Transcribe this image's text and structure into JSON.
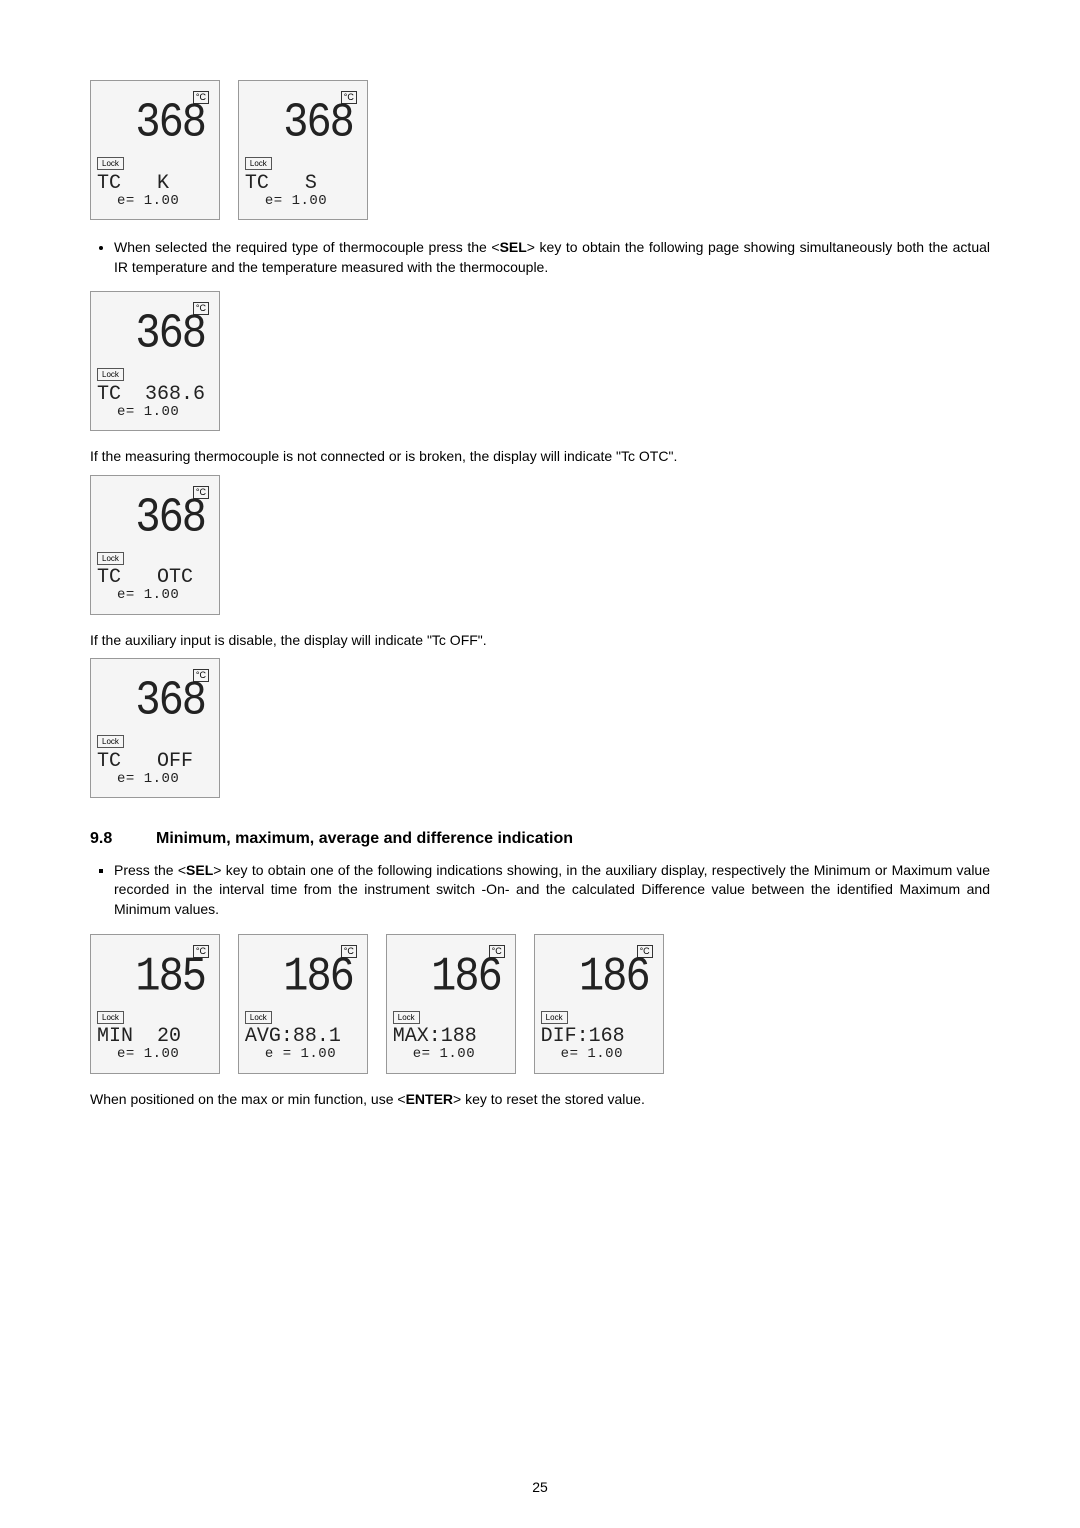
{
  "page_number": "25",
  "section": {
    "number": "9.8",
    "title": "Minimum, maximum, average and difference indication"
  },
  "row_top": {
    "panels": [
      {
        "unit": "°C",
        "main": "368",
        "lock": "Lock",
        "aux": "TC   K",
        "e": "e= 1.00"
      },
      {
        "unit": "°C",
        "main": "368",
        "lock": "Lock",
        "aux": "TC   S",
        "e": "e= 1.00"
      }
    ]
  },
  "bullet_sel": "When selected the required type of thermocouple press the <",
  "bullet_sel_key": "SEL",
  "bullet_sel_2": "> key to obtain the following page showing simultaneously both the actual IR temperature and the temperature measured with the thermocouple.",
  "panel_tc_value": {
    "unit": "°C",
    "main": "368",
    "lock": "Lock",
    "aux": "TC  368.6",
    "e": "e= 1.00"
  },
  "para_otc": "If the measuring thermocouple is not connected or is broken, the display will indicate \"Tc  OTC\".",
  "panel_otc": {
    "unit": "°C",
    "main": "368",
    "lock": "Lock",
    "aux": "TC   OTC",
    "e": "e= 1.00"
  },
  "para_off": "If the auxiliary input is disable, the display will indicate \"Tc  OFF\".",
  "panel_off": {
    "unit": "°C",
    "main": "368",
    "lock": "Lock",
    "aux": "TC   OFF",
    "e": "e= 1.00"
  },
  "bullet_sel2_1": "Press the <",
  "bullet_sel2_key": "SEL",
  "bullet_sel2_2": "> key to obtain one of the following indications showing, in the auxiliary display, respectively the Minimum or Maximum value recorded in the interval time from the instrument switch -On- and the calculated Difference value between the identified Maximum and Minimum values.",
  "row_bottom": {
    "panels": [
      {
        "unit": "°C",
        "main": "185",
        "lock": "Lock",
        "aux": "MIN  20",
        "e": "e= 1.00"
      },
      {
        "unit": "°C",
        "main": "186",
        "lock": "Lock",
        "aux": "AVG:88.1",
        "e": "e = 1.00"
      },
      {
        "unit": "°C",
        "main": "186",
        "lock": "Lock",
        "aux": "MAX:188",
        "e": "e= 1.00"
      },
      {
        "unit": "°C",
        "main": "186",
        "lock": "Lock",
        "aux": "DIF:168",
        "e": "e= 1.00"
      }
    ]
  },
  "para_enter_1": "When positioned on the max or min function, use <",
  "para_enter_key": "ENTER",
  "para_enter_2": "> key to reset the stored value."
}
